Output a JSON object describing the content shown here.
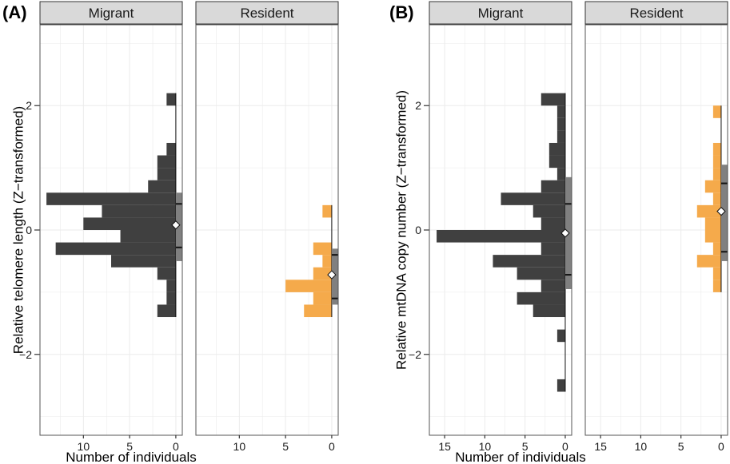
{
  "chart_data": [
    {
      "type": "bar",
      "orientation": "horizontal-histogram",
      "panel_label": "(A)",
      "ylabel": "Relative telomere length (Z−transformed)",
      "xlabel": "Number of individuals",
      "ylim": [
        -3.3,
        3.3
      ],
      "yticks": [
        2,
        0,
        -2
      ],
      "ytick_labels": [
        "2",
        "0",
        "−2"
      ],
      "xlim": [
        14.7,
        -0.7
      ],
      "xticks": [
        10,
        5,
        0
      ],
      "xtick_labels": [
        "10",
        "5",
        "0"
      ],
      "grid": true,
      "bin_width": 0.2,
      "facets": [
        {
          "name": "Migrant",
          "color": "#404040",
          "bins": [
            {
              "lo": 2.0,
              "hi": 2.2,
              "count": 1
            },
            {
              "lo": 1.2,
              "hi": 1.4,
              "count": 1
            },
            {
              "lo": 1.0,
              "hi": 1.2,
              "count": 2
            },
            {
              "lo": 0.8,
              "hi": 1.0,
              "count": 2
            },
            {
              "lo": 0.6,
              "hi": 0.8,
              "count": 3
            },
            {
              "lo": 0.4,
              "hi": 0.6,
              "count": 14
            },
            {
              "lo": 0.2,
              "hi": 0.4,
              "count": 8
            },
            {
              "lo": 0.0,
              "hi": 0.2,
              "count": 10
            },
            {
              "lo": -0.2,
              "hi": 0.0,
              "count": 6
            },
            {
              "lo": -0.4,
              "hi": -0.2,
              "count": 13
            },
            {
              "lo": -0.6,
              "hi": -0.4,
              "count": 7
            },
            {
              "lo": -0.8,
              "hi": -0.6,
              "count": 2
            },
            {
              "lo": -1.0,
              "hi": -0.8,
              "count": 1
            },
            {
              "lo": -1.2,
              "hi": -1.0,
              "count": 1
            },
            {
              "lo": -1.4,
              "hi": -1.2,
              "count": 2
            }
          ],
          "boxplot": {
            "upper": 0.6,
            "q3": 0.42,
            "q1": -0.28,
            "lower": -0.5,
            "mean": 0.08,
            "whisker_top": 2.2,
            "whisker_bottom": -1.4
          }
        },
        {
          "name": "Resident",
          "color": "#F5AA4B",
          "bins": [
            {
              "lo": 0.2,
              "hi": 0.4,
              "count": 1
            },
            {
              "lo": -0.2,
              "hi": 0.0,
              "count": 0
            },
            {
              "lo": -0.4,
              "hi": -0.2,
              "count": 2
            },
            {
              "lo": -0.6,
              "hi": -0.4,
              "count": 1
            },
            {
              "lo": -0.8,
              "hi": -0.6,
              "count": 2
            },
            {
              "lo": -1.0,
              "hi": -0.8,
              "count": 5
            },
            {
              "lo": -1.2,
              "hi": -1.0,
              "count": 2
            },
            {
              "lo": -1.4,
              "hi": -1.2,
              "count": 3
            }
          ],
          "boxplot": {
            "upper": -0.3,
            "q3": -0.4,
            "q1": -1.1,
            "lower": -1.2,
            "mean": -0.72,
            "whisker_top": 0.4,
            "whisker_bottom": -1.4
          }
        }
      ]
    },
    {
      "type": "bar",
      "orientation": "horizontal-histogram",
      "panel_label": "(B)",
      "ylabel": "Relative mtDNA copy number  (Z−transformed)",
      "xlabel": "Number of individuals",
      "ylim": [
        -3.3,
        3.3
      ],
      "yticks": [
        2,
        0,
        -2
      ],
      "ytick_labels": [
        "2",
        "0",
        "−2"
      ],
      "xlim": [
        16.9,
        -0.8
      ],
      "xticks": [
        15,
        10,
        5,
        0
      ],
      "xtick_labels": [
        "15",
        "10",
        "5",
        "0"
      ],
      "grid": true,
      "bin_width": 0.2,
      "facets": [
        {
          "name": "Migrant",
          "color": "#404040",
          "bins": [
            {
              "lo": 2.0,
              "hi": 2.2,
              "count": 3
            },
            {
              "lo": 1.8,
              "hi": 2.0,
              "count": 1
            },
            {
              "lo": 1.6,
              "hi": 1.8,
              "count": 1
            },
            {
              "lo": 1.4,
              "hi": 1.6,
              "count": 1
            },
            {
              "lo": 1.2,
              "hi": 1.4,
              "count": 2
            },
            {
              "lo": 1.0,
              "hi": 1.2,
              "count": 2
            },
            {
              "lo": 0.8,
              "hi": 1.0,
              "count": 1
            },
            {
              "lo": 0.6,
              "hi": 0.8,
              "count": 3
            },
            {
              "lo": 0.4,
              "hi": 0.6,
              "count": 8
            },
            {
              "lo": 0.2,
              "hi": 0.4,
              "count": 4
            },
            {
              "lo": 0.0,
              "hi": 0.2,
              "count": 3
            },
            {
              "lo": -0.2,
              "hi": 0.0,
              "count": 16
            },
            {
              "lo": -0.4,
              "hi": -0.2,
              "count": 3
            },
            {
              "lo": -0.6,
              "hi": -0.4,
              "count": 9
            },
            {
              "lo": -0.8,
              "hi": -0.6,
              "count": 6
            },
            {
              "lo": -1.0,
              "hi": -0.8,
              "count": 3
            },
            {
              "lo": -1.2,
              "hi": -1.0,
              "count": 6
            },
            {
              "lo": -1.4,
              "hi": -1.2,
              "count": 4
            },
            {
              "lo": -1.8,
              "hi": -1.6,
              "count": 1
            },
            {
              "lo": -2.6,
              "hi": -2.4,
              "count": 1
            }
          ],
          "boxplot": {
            "upper": 0.85,
            "q3": 0.42,
            "q1": -0.72,
            "lower": -0.95,
            "mean": -0.05,
            "whisker_top": 2.2,
            "whisker_bottom": -2.6
          }
        },
        {
          "name": "Resident",
          "color": "#F5AA4B",
          "bins": [
            {
              "lo": 1.8,
              "hi": 2.0,
              "count": 1
            },
            {
              "lo": 1.2,
              "hi": 1.4,
              "count": 1
            },
            {
              "lo": 1.0,
              "hi": 1.2,
              "count": 1
            },
            {
              "lo": 0.8,
              "hi": 1.0,
              "count": 1
            },
            {
              "lo": 0.6,
              "hi": 0.8,
              "count": 2
            },
            {
              "lo": 0.4,
              "hi": 0.6,
              "count": 1
            },
            {
              "lo": 0.2,
              "hi": 0.4,
              "count": 3
            },
            {
              "lo": 0.0,
              "hi": 0.2,
              "count": 2
            },
            {
              "lo": -0.2,
              "hi": 0.0,
              "count": 2
            },
            {
              "lo": -0.4,
              "hi": -0.2,
              "count": 1
            },
            {
              "lo": -0.6,
              "hi": -0.4,
              "count": 3
            },
            {
              "lo": -0.8,
              "hi": -0.6,
              "count": 1
            },
            {
              "lo": -1.0,
              "hi": -0.8,
              "count": 1
            }
          ],
          "boxplot": {
            "upper": 1.05,
            "q3": 0.75,
            "q1": -0.35,
            "lower": -0.5,
            "mean": 0.3,
            "whisker_top": 2.0,
            "whisker_bottom": -1.0
          }
        }
      ]
    }
  ]
}
